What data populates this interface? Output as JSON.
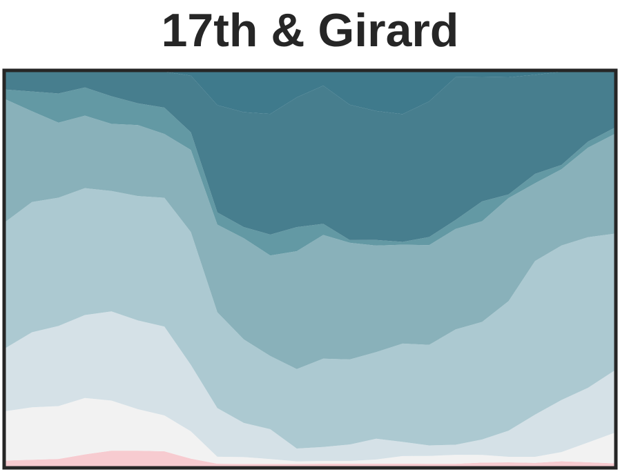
{
  "chart_data": {
    "type": "area",
    "stacked": true,
    "normalized": true,
    "title": "17th & Girard",
    "xlabel": "",
    "ylabel": "",
    "ylim": [
      0,
      1
    ],
    "axes_visible": false,
    "grid": false,
    "legend": "none",
    "x": [
      0,
      1,
      2,
      3,
      4,
      5,
      6,
      7,
      8,
      9,
      10,
      11,
      12,
      13,
      14,
      15,
      16,
      17,
      18,
      19,
      20,
      21,
      22,
      23
    ],
    "series": [
      {
        "color": "#f7cbd0",
        "values": [
          0.015,
          0.017,
          0.019,
          0.03,
          0.04,
          0.04,
          0.038,
          0.02,
          0.01,
          0.01,
          0.01,
          0.01,
          0.01,
          0.01,
          0.01,
          0.01,
          0.01,
          0.01,
          0.015,
          0.015,
          0.012,
          0.017,
          0.014,
          0.01
        ]
      },
      {
        "color": "#f2f2f2",
        "values": [
          0.125,
          0.133,
          0.134,
          0.14,
          0.127,
          0.105,
          0.09,
          0.07,
          0.025,
          0.027,
          0.02,
          0.01,
          0.01,
          0.01,
          0.015,
          0.027,
          0.029,
          0.033,
          0.03,
          0.02,
          0.02,
          0.03,
          0.065,
          0.098
        ]
      },
      {
        "color": "#d5e1e7",
        "values": [
          0.16,
          0.19,
          0.203,
          0.206,
          0.226,
          0.225,
          0.223,
          0.17,
          0.175,
          0.135,
          0.12,
          0.05,
          0.05,
          0.06,
          0.074,
          0.05,
          0.039,
          0.037,
          0.06,
          0.095,
          0.14,
          0.17,
          0.18,
          0.2
        ]
      },
      {
        "color": "#acc9d1",
        "values": [
          0.32,
          0.33,
          0.325,
          0.315,
          0.305,
          0.315,
          0.323,
          0.34,
          0.345,
          0.33,
          0.295,
          0.31,
          0.318,
          0.31,
          0.309,
          0.348,
          0.373,
          0.425,
          0.457,
          0.47,
          0.51,
          0.504,
          0.496,
          0.44
        ]
      },
      {
        "color": "#89b1ba",
        "values": [
          0.31,
          0.23,
          0.19,
          0.18,
          0.17,
          0.18,
          0.16,
          0.21,
          0.315,
          0.4,
          0.405,
          0.46,
          0.445,
          0.425,
          0.38,
          0.35,
          0.37,
          0.37,
          0.391,
          0.374,
          0.258,
          0.249,
          0.295,
          0.32
        ]
      },
      {
        "color": "#6399a4",
        "values": [
          0.025,
          0.05,
          0.074,
          0.07,
          0.07,
          0.055,
          0.066,
          0.045,
          0.044,
          0.044,
          0.084,
          0.094,
          0.04,
          0.01,
          0.02,
          0.01,
          0.03,
          0.033,
          0.077,
          0.013,
          0.031,
          0.014,
          0.02,
          0.02
        ]
      },
      {
        "color": "#477e8e",
        "values": [
          0.045,
          0.05,
          0.055,
          0.039,
          0.062,
          0.08,
          0.09,
          0.145,
          0.386,
          0.454,
          0.486,
          0.506,
          0.497,
          0.493,
          0.46,
          0.452,
          0.503,
          0.526,
          0.484,
          0.425,
          0.329,
          0.304,
          0.23,
          0.18
        ]
      },
      {
        "color": "#3f7a8c",
        "values": [
          0,
          0,
          0,
          0,
          0,
          0,
          0,
          0.01,
          0.12,
          0.16,
          0.17,
          0.1,
          0.05,
          0.12,
          0.14,
          0.15,
          0.11,
          0.02,
          0.02,
          0.02,
          0.01,
          0.0,
          0.0,
          0.0
        ]
      }
    ]
  }
}
